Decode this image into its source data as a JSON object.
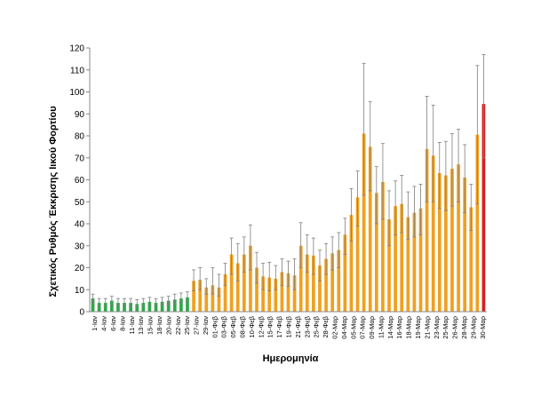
{
  "chart_data": {
    "type": "bar",
    "xlabel": "Ημερομηνία",
    "ylabel": "Σχετικός Ρυθμός Έκκρισης Ιικού Φορτίου",
    "ylim": [
      0,
      120
    ],
    "yticks": [
      0,
      10,
      20,
      30,
      40,
      50,
      60,
      70,
      80,
      90,
      100,
      110,
      120
    ],
    "grid": false,
    "legend": "none",
    "error_bars": true,
    "colors": {
      "green": "#2ea84a",
      "orange": "#f0a020",
      "red": "#d42020",
      "error_bar": "#7f7f7f",
      "axis": "#888888"
    },
    "x_tick_labels": [
      "1-Ιαν",
      "4-Ιαν",
      "6-Ιαν",
      "8-Ιαν",
      "11-Ιαν",
      "13-Ιαν",
      "15-Ιαν",
      "18-Ιαν",
      "20-Ιαν",
      "22-Ιαν",
      "25-Ιαν",
      "27-Ιαν",
      "29-Ιαν",
      "01-Φεβ",
      "03-Φεβ",
      "05-Φεβ",
      "08-Φεβ",
      "10-Φεβ",
      "12-Φεβ",
      "15-Φεβ",
      "17-Φεβ",
      "19-Φεβ",
      "21-Φεβ",
      "23-Φεβ",
      "25-Φεβ",
      "28-Φεβ",
      "02-Μαρ",
      "04-Μαρ",
      "05-Μαρ",
      "07-Μαρ",
      "09-Μαρ",
      "11-Μαρ",
      "14-Μαρ",
      "16-Μαρ",
      "18-Μαρ",
      "19-Μαρ",
      "21-Μαρ",
      "23-Μαρ",
      "25-Μαρ",
      "26-Μαρ",
      "28-Μαρ",
      "29-Μαρ",
      "30-Μαρ"
    ],
    "values": [
      6.0,
      4.0,
      4.0,
      5.0,
      4.0,
      4.0,
      4.0,
      3.5,
      4.0,
      4.5,
      4.0,
      4.5,
      5.0,
      5.5,
      6.0,
      6.5,
      14.0,
      14.5,
      11.0,
      12.0,
      11.0,
      17.0,
      26.0,
      22.0,
      26.0,
      30.0,
      20.0,
      16.0,
      15.5,
      15.0,
      18.0,
      17.5,
      16.5,
      30.0,
      26.0,
      25.5,
      21.0,
      24.0,
      26.5,
      28.0,
      35.0,
      44.0,
      52.0,
      81.0,
      75.0,
      54.0,
      59.0,
      42.0,
      48.0,
      49.0,
      43.0,
      45.0,
      47.0,
      74.0,
      71.0,
      63.0,
      62.0,
      65.0,
      67.0,
      61.0,
      47.5,
      80.5,
      94.5
    ],
    "error_high": [
      8.0,
      6.0,
      6.0,
      7.0,
      6.0,
      6.0,
      6.0,
      5.5,
      6.0,
      6.5,
      6.0,
      6.5,
      7.0,
      8.0,
      8.5,
      9.0,
      19.0,
      20.0,
      15.0,
      20.0,
      17.0,
      22.0,
      33.5,
      31.0,
      34.0,
      39.5,
      27.0,
      22.0,
      22.5,
      21.0,
      24.0,
      23.0,
      24.0,
      40.5,
      35.0,
      33.5,
      28.0,
      31.0,
      34.0,
      36.0,
      42.5,
      56.0,
      64.0,
      113.0,
      95.5,
      66.0,
      76.5,
      55.0,
      59.5,
      62.0,
      54.5,
      57.0,
      58.0,
      98.0,
      94.0,
      77.0,
      77.5,
      81.0,
      83.0,
      76.0,
      58.0,
      112.0,
      117.0
    ],
    "error_low": [
      4.0,
      2.5,
      2.5,
      3.0,
      2.5,
      2.5,
      2.5,
      2.0,
      2.5,
      3.0,
      2.5,
      3.0,
      3.0,
      3.5,
      4.0,
      4.5,
      9.5,
      10.0,
      8.0,
      8.0,
      7.0,
      12.0,
      17.0,
      14.0,
      18.0,
      19.0,
      13.0,
      10.0,
      9.5,
      10.0,
      12.0,
      11.5,
      10.0,
      20.0,
      18.0,
      17.0,
      14.0,
      17.0,
      19.0,
      20.0,
      26.0,
      32.0,
      39.0,
      53.0,
      55.0,
      40.0,
      42.0,
      30.0,
      35.0,
      36.0,
      33.0,
      34.0,
      35.0,
      50.0,
      50.0,
      47.0,
      46.0,
      48.0,
      50.0,
      45.0,
      37.0,
      49.0,
      70.0
    ],
    "bar_colors": [
      "green",
      "green",
      "green",
      "green",
      "green",
      "green",
      "green",
      "green",
      "green",
      "green",
      "green",
      "green",
      "green",
      "green",
      "green",
      "green",
      "orange",
      "orange",
      "orange",
      "orange",
      "orange",
      "orange",
      "orange",
      "orange",
      "orange",
      "orange",
      "orange",
      "orange",
      "orange",
      "orange",
      "orange",
      "orange",
      "orange",
      "orange",
      "orange",
      "orange",
      "orange",
      "orange",
      "orange",
      "orange",
      "orange",
      "orange",
      "orange",
      "orange",
      "orange",
      "orange",
      "orange",
      "orange",
      "orange",
      "orange",
      "orange",
      "orange",
      "orange",
      "orange",
      "orange",
      "orange",
      "orange",
      "orange",
      "orange",
      "orange",
      "orange",
      "orange",
      "red"
    ]
  }
}
